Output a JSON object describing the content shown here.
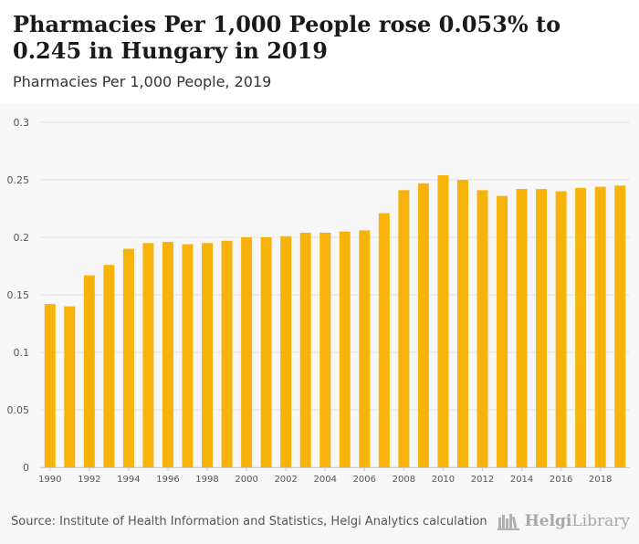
{
  "header": {
    "title": "Pharmacies Per 1,000 People rose 0.053% to 0.245 in Hungary in 2019",
    "subtitle": "Pharmacies Per 1,000 People, 2019"
  },
  "footer": {
    "source": "Source: Institute of Health Information and Statistics, Helgi Analytics calculation",
    "logo_text_bold": "Helgi",
    "logo_text_rest": "Library",
    "logo_icon": "bookshelf-icon"
  },
  "colors": {
    "bar": "#F7B30B",
    "grid": "#e2e2e2",
    "chart_bg": "#f7f7f7",
    "tick_text": "#555555"
  },
  "chart_data": {
    "type": "bar",
    "title": "Pharmacies Per 1,000 People rose 0.053% to 0.245 in Hungary in 2019",
    "subtitle": "Pharmacies Per 1,000 People, 2019",
    "xlabel": "",
    "ylabel": "",
    "ylim": [
      0,
      0.3
    ],
    "yticks": [
      "0",
      "0.05",
      "0.1",
      "0.15",
      "0.2",
      "0.25",
      "0.3"
    ],
    "grid": true,
    "categories": [
      1990,
      1991,
      1992,
      1993,
      1994,
      1995,
      1996,
      1997,
      1998,
      1999,
      2000,
      2001,
      2002,
      2003,
      2004,
      2005,
      2006,
      2007,
      2008,
      2009,
      2010,
      2011,
      2012,
      2013,
      2014,
      2015,
      2016,
      2017,
      2018,
      2019
    ],
    "xtick_labels": [
      "1990",
      "1992",
      "1994",
      "1996",
      "1998",
      "2000",
      "2002",
      "2004",
      "2006",
      "2008",
      "2010",
      "2012",
      "2014",
      "2016",
      "2018"
    ],
    "values": [
      0.142,
      0.14,
      0.167,
      0.176,
      0.19,
      0.195,
      0.196,
      0.194,
      0.195,
      0.197,
      0.2,
      0.2,
      0.201,
      0.204,
      0.204,
      0.205,
      0.206,
      0.221,
      0.241,
      0.247,
      0.254,
      0.25,
      0.241,
      0.236,
      0.242,
      0.242,
      0.24,
      0.243,
      0.244,
      0.245
    ]
  }
}
